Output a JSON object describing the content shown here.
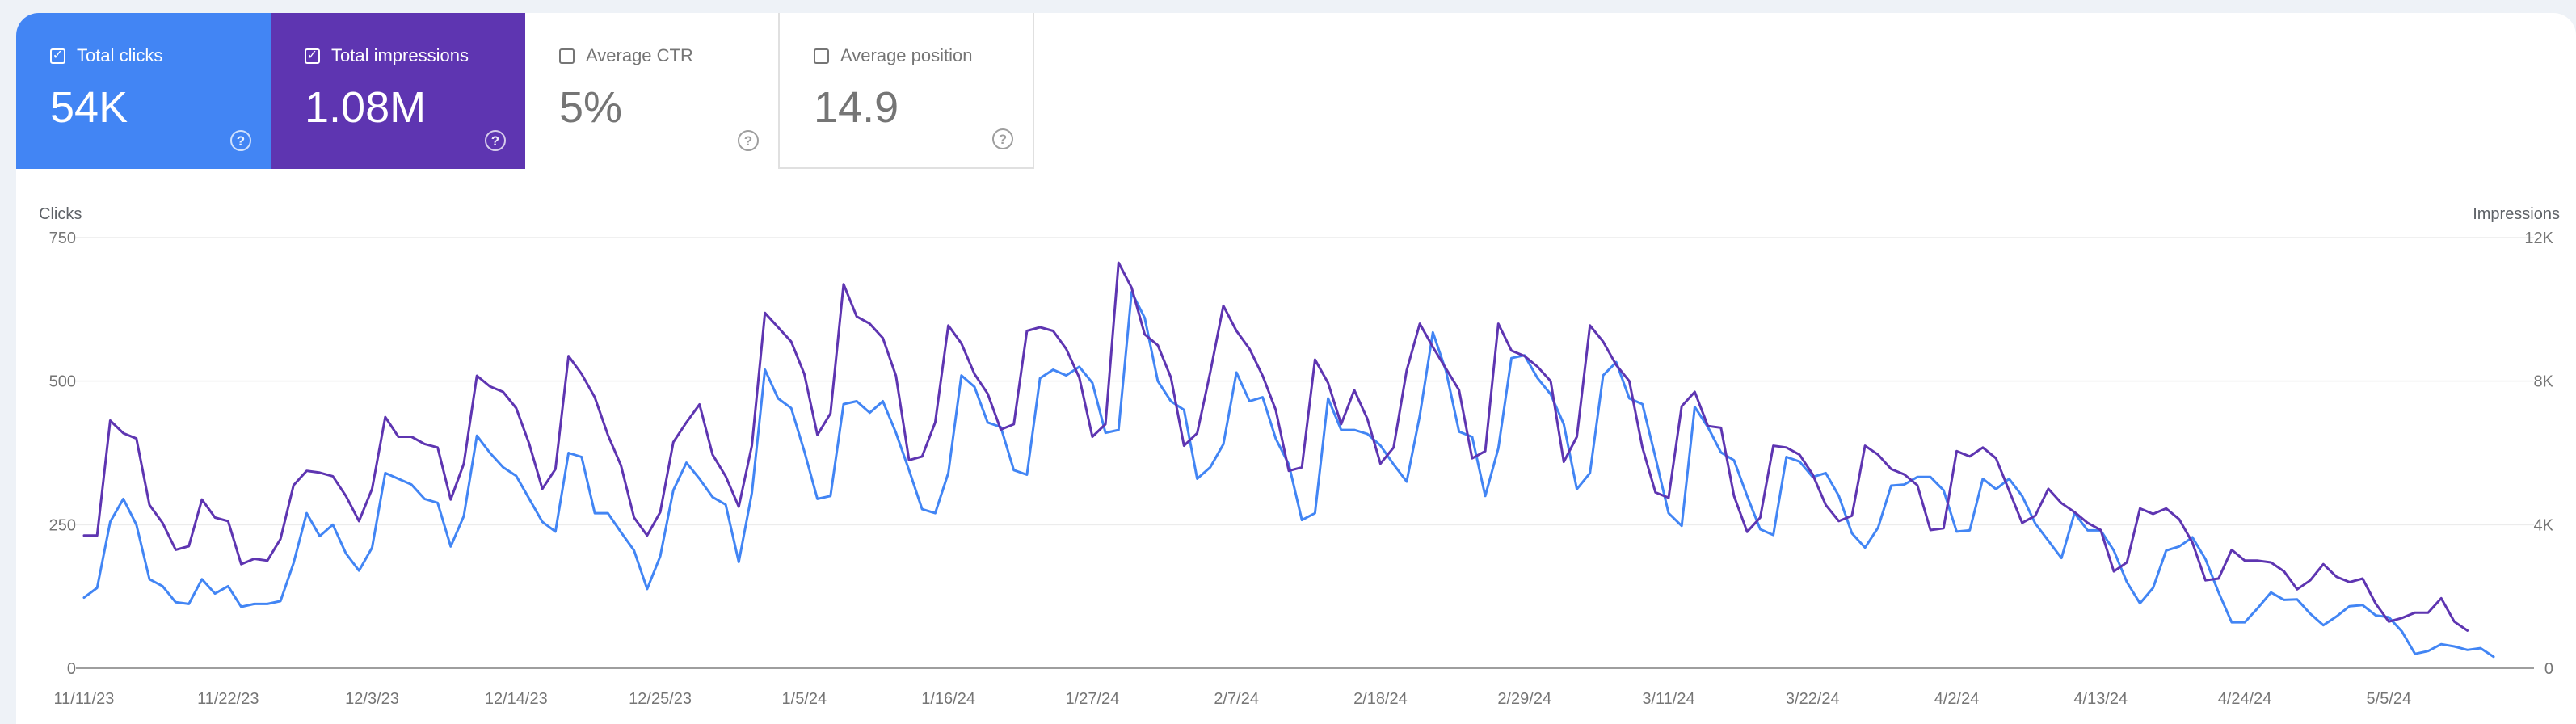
{
  "metrics": [
    {
      "label": "Total clicks",
      "value": "54K",
      "checked": true
    },
    {
      "label": "Total impressions",
      "value": "1.08M",
      "checked": true
    },
    {
      "label": "Average CTR",
      "value": "5%",
      "checked": false
    },
    {
      "label": "Average position",
      "value": "14.9",
      "checked": false
    }
  ],
  "chart_data": {
    "type": "line",
    "left_axis_title": "Clicks",
    "right_axis_title": "Impressions",
    "y_left": {
      "min": 0,
      "max": 750,
      "ticks": [
        "0",
        "250",
        "500",
        "750"
      ]
    },
    "y_right": {
      "min": 0,
      "max": 12000,
      "ticks": [
        "0",
        "4K",
        "8K",
        "12K"
      ]
    },
    "x_start": "2023-11-11",
    "x_tick_labels": [
      "11/11/23",
      "11/22/23",
      "12/3/23",
      "12/14/23",
      "12/25/23",
      "1/5/24",
      "1/16/24",
      "1/27/24",
      "2/7/24",
      "2/18/24",
      "2/29/24",
      "3/11/24",
      "3/22/24",
      "4/2/24",
      "4/13/24",
      "4/24/24",
      "5/5/24"
    ],
    "grid": true,
    "colors": {
      "clicks": "#4285f4",
      "impressions": "#5e35b1"
    },
    "series": [
      {
        "name": "Clicks",
        "axis": "left",
        "values": [
          123,
          140,
          255,
          295,
          250,
          155,
          143,
          115,
          112,
          155,
          130,
          143,
          107,
          112,
          112,
          117,
          183,
          270,
          230,
          250,
          200,
          170,
          210,
          340,
          330,
          320,
          295,
          288,
          212,
          265,
          405,
          375,
          350,
          335,
          295,
          255,
          238,
          375,
          368,
          270,
          270,
          237,
          205,
          138,
          195,
          310,
          358,
          330,
          298,
          285,
          185,
          305,
          520,
          470,
          453,
          378,
          295,
          300,
          460,
          465,
          445,
          465,
          410,
          345,
          277,
          270,
          340,
          510,
          490,
          428,
          420,
          345,
          337,
          505,
          520,
          510,
          525,
          497,
          410,
          415,
          655,
          610,
          500,
          465,
          450,
          330,
          350,
          390,
          515,
          465,
          472,
          400,
          355,
          258,
          270,
          470,
          415,
          415,
          408,
          388,
          355,
          325,
          440,
          585,
          518,
          412,
          403,
          300,
          383,
          540,
          545,
          505,
          477,
          425,
          312,
          340,
          510,
          533,
          470,
          460,
          367,
          270,
          248,
          455,
          420,
          376,
          362,
          300,
          242,
          232,
          368,
          360,
          333,
          340,
          300,
          235,
          210,
          245,
          318,
          320,
          333,
          333,
          310,
          238,
          240,
          330,
          312,
          330,
          300,
          252,
          222,
          192,
          270,
          240,
          240,
          205,
          150,
          113,
          140,
          205,
          212,
          228,
          190,
          132,
          80,
          80,
          105,
          132,
          119,
          120,
          95,
          75,
          90,
          108,
          110,
          92,
          89,
          64,
          25,
          30,
          42,
          38,
          32,
          35,
          20
        ]
      },
      {
        "name": "Impressions",
        "axis": "right",
        "values": [
          3700,
          3700,
          6900,
          6550,
          6400,
          4550,
          4050,
          3300,
          3400,
          4700,
          4200,
          4100,
          2900,
          3050,
          3000,
          3600,
          5100,
          5500,
          5450,
          5350,
          4800,
          4100,
          5000,
          7000,
          6450,
          6450,
          6250,
          6150,
          4700,
          5700,
          8150,
          7850,
          7700,
          7250,
          6250,
          5000,
          5550,
          8700,
          8200,
          7550,
          6500,
          5650,
          4200,
          3700,
          4350,
          6300,
          6850,
          7350,
          5950,
          5350,
          4500,
          6200,
          9900,
          9500,
          9100,
          8200,
          6500,
          7100,
          10700,
          9800,
          9600,
          9200,
          8150,
          5800,
          5900,
          6850,
          9550,
          9050,
          8200,
          7650,
          6650,
          6800,
          9400,
          9500,
          9400,
          8900,
          8100,
          6450,
          6800,
          11300,
          10600,
          9300,
          9000,
          8100,
          6200,
          6550,
          8250,
          10100,
          9400,
          8900,
          8150,
          7200,
          5500,
          5600,
          8600,
          7950,
          6800,
          7750,
          6950,
          5700,
          6150,
          8300,
          9600,
          8950,
          8350,
          7750,
          5850,
          6050,
          9600,
          8850,
          8700,
          8400,
          8000,
          5750,
          6450,
          9550,
          9100,
          8450,
          8000,
          6150,
          4900,
          4750,
          7300,
          7700,
          6750,
          6700,
          4800,
          3800,
          4200,
          6200,
          6150,
          5950,
          5400,
          4550,
          4100,
          4250,
          6200,
          5950,
          5550,
          5400,
          5100,
          3850,
          3900,
          6050,
          5900,
          6150,
          5850,
          4950,
          4050,
          4250,
          5000,
          4600,
          4350,
          4050,
          3850,
          2700,
          2950,
          4450,
          4300,
          4450,
          4150,
          3500,
          2450,
          2500,
          3300,
          3000,
          3000,
          2950,
          2700,
          2200,
          2450,
          2900,
          2550,
          2400,
          2500,
          1800,
          1300,
          1400,
          1550,
          1550,
          1950,
          1300,
          1050
        ]
      }
    ]
  }
}
